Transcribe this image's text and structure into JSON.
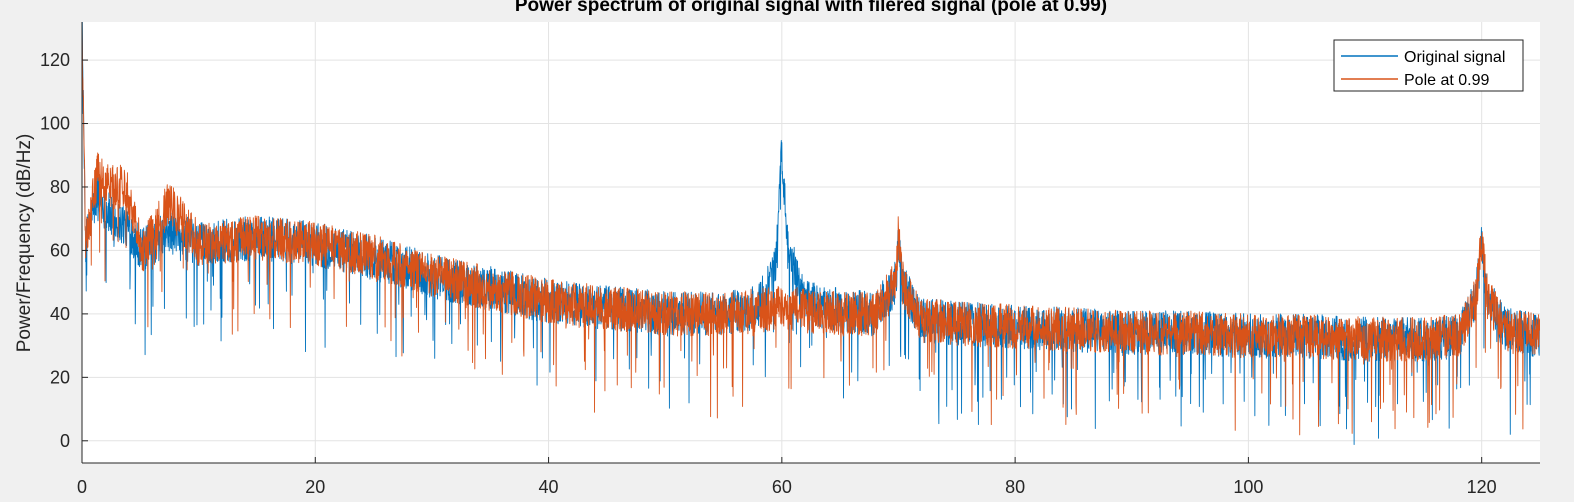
{
  "chart_data": {
    "type": "line",
    "title": "Power spectrum of original signal with filered signal (pole at 0.99)",
    "xlabel": "",
    "ylabel": "Power/Frequency (dB/Hz)",
    "xlim": [
      0,
      125
    ],
    "ylim": [
      -7,
      132
    ],
    "xticks": [
      0,
      20,
      40,
      60,
      80,
      100,
      120
    ],
    "yticks": [
      0,
      20,
      40,
      60,
      80,
      100,
      120
    ],
    "grid": true,
    "legend_position": "top-right",
    "series": [
      {
        "name": "Original signal",
        "color": "#0072BD",
        "x": [
          0,
          0.3,
          1.3,
          2.5,
          3.8,
          5.2,
          7.5,
          10,
          15,
          20,
          25,
          30,
          35,
          40,
          45,
          50,
          55,
          58,
          59.5,
          60,
          60.5,
          62,
          65,
          68,
          69.8,
          70,
          70.3,
          72,
          75,
          80,
          85,
          90,
          95,
          100,
          105,
          110,
          115,
          118,
          119.5,
          120,
          120.5,
          122,
          125
        ],
        "values": [
          132,
          62,
          78,
          70,
          68,
          60,
          66,
          62,
          64,
          62,
          58,
          52,
          48,
          44,
          42,
          40,
          40,
          42,
          55,
          92,
          60,
          44,
          41,
          40,
          50,
          66,
          50,
          38,
          37,
          36,
          35,
          34,
          34,
          33,
          33,
          32,
          32,
          33,
          45,
          62,
          45,
          35,
          33
        ]
      },
      {
        "name": "Pole at 0.99",
        "color": "#D95319",
        "x": [
          0,
          0.3,
          1.3,
          2.5,
          3.8,
          5.2,
          7.5,
          10,
          15,
          20,
          25,
          30,
          35,
          40,
          45,
          50,
          55,
          58,
          60,
          62,
          65,
          68,
          69.8,
          70,
          70.3,
          72,
          75,
          80,
          85,
          90,
          95,
          100,
          105,
          110,
          115,
          118,
          119.5,
          120,
          120.5,
          122,
          125
        ],
        "values": [
          132,
          62,
          84,
          80,
          80,
          60,
          75,
          62,
          64,
          62,
          58,
          52,
          48,
          44,
          42,
          40,
          40,
          41,
          42,
          41,
          40,
          40,
          50,
          67,
          50,
          38,
          37,
          36,
          35,
          34,
          34,
          33,
          33,
          32,
          32,
          33,
          45,
          63,
          45,
          35,
          33
        ]
      }
    ]
  }
}
